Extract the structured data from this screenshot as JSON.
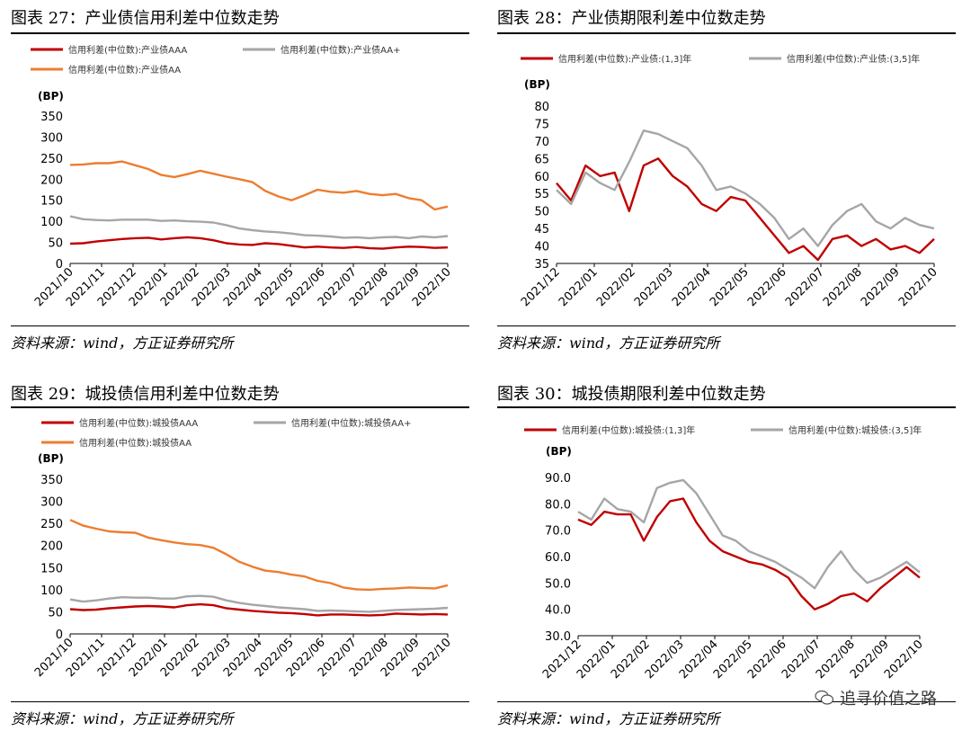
{
  "panels": [
    {
      "title": "图表 27：产业债信用利差中位数走势",
      "source": "资料来源：wind，方正证券研究所",
      "chart_data": {
        "type": "line",
        "ylabel": "(BP)",
        "ylim": [
          0,
          350
        ],
        "yticks": [
          "0",
          "50",
          "100",
          "150",
          "200",
          "250",
          "300",
          "350"
        ],
        "xlabels": [
          "2021/10",
          "2021/11",
          "2021/12",
          "2022/01",
          "2022/02",
          "2022/03",
          "2022/04",
          "2022/05",
          "2022/06",
          "2022/07",
          "2022/08",
          "2022/09",
          "2022/10"
        ],
        "legend_cols": 2,
        "series": [
          {
            "name": "信用利差(中位数):产业债AAA",
            "color": "#c00000",
            "values": [
              47,
              48,
              52,
              55,
              58,
              60,
              61,
              57,
              60,
              62,
              60,
              55,
              48,
              45,
              44,
              48,
              46,
              42,
              38,
              40,
              38,
              37,
              39,
              36,
              35,
              38,
              40,
              39,
              37,
              38
            ]
          },
          {
            "name": "信用利差(中位数):产业债AA+",
            "color": "#a6a6a6",
            "values": [
              112,
              105,
              103,
              102,
              104,
              104,
              104,
              101,
              102,
              100,
              99,
              97,
              91,
              83,
              79,
              76,
              74,
              71,
              67,
              66,
              64,
              61,
              62,
              60,
              62,
              63,
              60,
              64,
              62,
              65
            ]
          },
          {
            "name": "信用利差(中位数):产业债AA",
            "color": "#ed7d31",
            "values": [
              234,
              235,
              238,
              238,
              242,
              233,
              224,
              210,
              205,
              212,
              220,
              213,
              206,
              200,
              193,
              172,
              159,
              150,
              162,
              175,
              170,
              168,
              172,
              165,
              162,
              165,
              155,
              150,
              128,
              135
            ]
          }
        ]
      }
    },
    {
      "title": "图表 28：产业债期限利差中位数走势",
      "source": "资料来源：wind，方正证券研究所",
      "chart_data": {
        "type": "line",
        "ylabel": "(BP)",
        "ylim": [
          35,
          80
        ],
        "yticks": [
          "35",
          "40",
          "45",
          "50",
          "55",
          "60",
          "65",
          "70",
          "75",
          "80"
        ],
        "xlabels": [
          "2021/12",
          "2022/01",
          "2022/02",
          "2022/03",
          "2022/04",
          "2022/05",
          "2022/06",
          "2022/07",
          "2022/08",
          "2022/09",
          "2022/10"
        ],
        "legend_cols": 2,
        "series": [
          {
            "name": "信用利差(中位数):产业债:(1,3]年",
            "color": "#c00000",
            "values": [
              58,
              53,
              63,
              60,
              61,
              50,
              63,
              65,
              60,
              57,
              52,
              50,
              54,
              53,
              48,
              43,
              38,
              40,
              36,
              42,
              43,
              40,
              42,
              39,
              40,
              38,
              42
            ]
          },
          {
            "name": "信用利差(中位数):产业债:(3,5]年",
            "color": "#a6a6a6",
            "values": [
              56,
              52,
              61,
              58,
              56,
              64,
              73,
              72,
              70,
              68,
              63,
              56,
              57,
              55,
              52,
              48,
              42,
              45,
              40,
              46,
              50,
              52,
              47,
              45,
              48,
              46,
              45
            ]
          }
        ]
      }
    },
    {
      "title": "图表 29：城投债信用利差中位数走势",
      "source": "资料来源：wind，方正证券研究所",
      "chart_data": {
        "type": "line",
        "ylabel": "(BP)",
        "ylim": [
          0,
          350
        ],
        "yticks": [
          "0",
          "50",
          "100",
          "150",
          "200",
          "250",
          "300",
          "350"
        ],
        "xlabels": [
          "2021/10",
          "2021/11",
          "2021/12",
          "2022/01",
          "2022/02",
          "2022/03",
          "2022/04",
          "2022/05",
          "2022/06",
          "2022/07",
          "2022/08",
          "2022/09",
          "2022/10"
        ],
        "legend_cols": 2,
        "series": [
          {
            "name": "信用利差(中位数):城投债AAA",
            "color": "#c00000",
            "values": [
              56,
              54,
              55,
              58,
              60,
              62,
              63,
              62,
              60,
              65,
              67,
              65,
              58,
              55,
              52,
              50,
              48,
              47,
              45,
              42,
              44,
              44,
              43,
              42,
              43,
              46,
              45,
              44,
              45,
              44
            ]
          },
          {
            "name": "信用利差(中位数):城投债AA+",
            "color": "#a6a6a6",
            "values": [
              78,
              73,
              76,
              80,
              83,
              82,
              82,
              80,
              80,
              85,
              86,
              84,
              76,
              70,
              66,
              63,
              60,
              58,
              56,
              52,
              53,
              52,
              51,
              50,
              52,
              54,
              55,
              56,
              57,
              59
            ]
          },
          {
            "name": "信用利差(中位数):城投债AA",
            "color": "#ed7d31",
            "values": [
              258,
              245,
              238,
              232,
              230,
              229,
              218,
              212,
              207,
              203,
              201,
              195,
              180,
              163,
              152,
              143,
              140,
              134,
              130,
              120,
              115,
              105,
              101,
              100,
              102,
              103,
              105,
              104,
              103,
              110
            ]
          }
        ]
      }
    },
    {
      "title": "图表 30：城投债期限利差中位数走势",
      "source": "资料来源：wind，方正证券研究所",
      "chart_data": {
        "type": "line",
        "ylabel": "(BP)",
        "ylim": [
          30,
          90
        ],
        "yticks": [
          "30.0",
          "40.0",
          "50.0",
          "60.0",
          "70.0",
          "80.0",
          "90.0"
        ],
        "xlabels": [
          "2021/12",
          "2022/01",
          "2022/02",
          "2022/03",
          "2022/04",
          "2022/05",
          "2022/06",
          "2022/07",
          "2022/08",
          "2022/09",
          "2022/10"
        ],
        "legend_cols": 2,
        "series": [
          {
            "name": "信用利差(中位数):城投债:(1,3]年",
            "color": "#c00000",
            "values": [
              74,
              72,
              77,
              76,
              76,
              66,
              75,
              81,
              82,
              73,
              66,
              62,
              60,
              58,
              57,
              55,
              52,
              45,
              40,
              42,
              45,
              46,
              43,
              48,
              52,
              56,
              52
            ]
          },
          {
            "name": "信用利差(中位数):城投债:(3,5]年",
            "color": "#a6a6a6",
            "values": [
              77,
              74,
              82,
              78,
              77,
              73,
              86,
              88,
              89,
              84,
              76,
              68,
              66,
              62,
              60,
              58,
              55,
              52,
              48,
              56,
              62,
              55,
              50,
              52,
              55,
              58,
              54
            ]
          }
        ]
      }
    }
  ],
  "watermark": "追寻价值之路"
}
